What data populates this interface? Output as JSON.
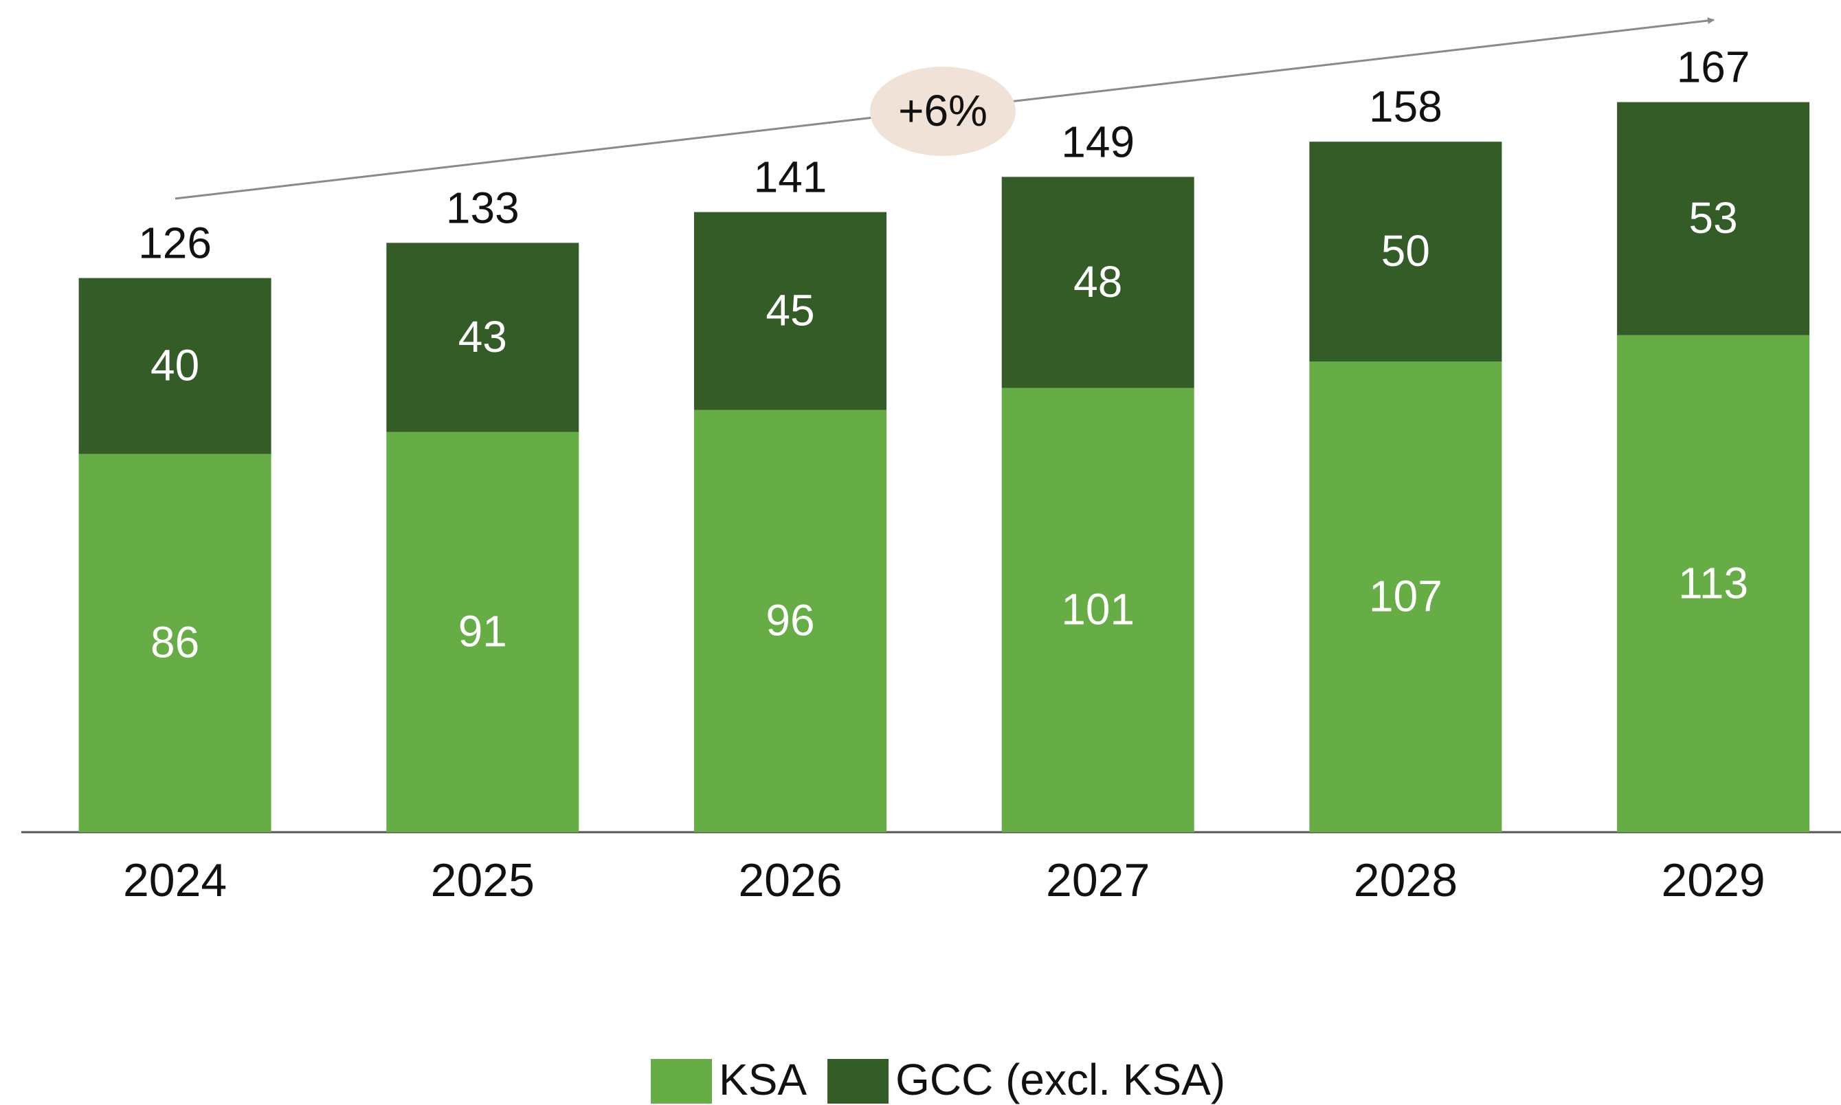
{
  "chart_data": {
    "type": "stacked_bar",
    "categories": [
      "2024",
      "2025",
      "2026",
      "2027",
      "2028",
      "2029"
    ],
    "series": [
      {
        "name": "KSA",
        "color": "#66ad45",
        "values": [
          86,
          91,
          96,
          101,
          107,
          113
        ]
      },
      {
        "name": "GCC (excl. KSA)",
        "color": "#345c27",
        "values": [
          40,
          43,
          45,
          48,
          50,
          53
        ]
      }
    ],
    "totals": [
      126,
      133,
      141,
      149,
      158,
      167
    ],
    "annotation": "+6%",
    "ylim": [
      0,
      180
    ]
  }
}
